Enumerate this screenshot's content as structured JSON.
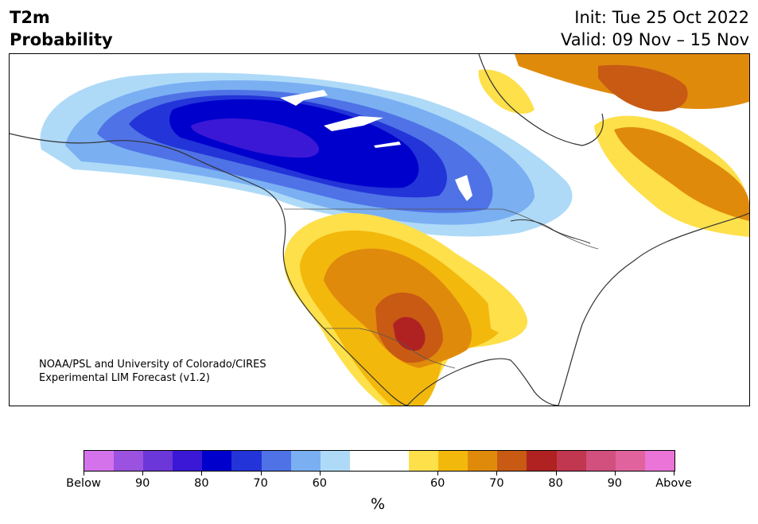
{
  "header": {
    "title_line1": "T2m",
    "title_line2": "Probability",
    "init": "Init: Tue 25 Oct 2022",
    "valid": "Valid: 09 Nov – 15 Nov"
  },
  "map": {
    "credit_line1": "NOAA/PSL and University of Colorado/CIRES",
    "credit_line2": "Experimental LIM Forecast (v1.2)"
  },
  "colorbar": {
    "colors": [
      "#d472ec",
      "#9b52e0",
      "#6c37d8",
      "#3b18d6",
      "#0000cc",
      "#2334d8",
      "#4f72e6",
      "#7aaff2",
      "#aedaf8",
      "#ffffff",
      "#ffffff",
      "#fde04a",
      "#f3b80c",
      "#e08a0c",
      "#c85a14",
      "#b02222",
      "#c23750",
      "#d2507e",
      "#e0639e",
      "#ea74d8"
    ],
    "tick_labels": [
      "Below",
      "90",
      "80",
      "70",
      "60",
      "60",
      "70",
      "80",
      "90",
      "Above"
    ],
    "unit_label": "%",
    "below_colors": {
      "p60": "#aedaf8",
      "p70": "#4f72e6",
      "p80": "#0000cc"
    },
    "above_colors": {
      "p60": "#fde04a",
      "p70": "#e08a0c",
      "p80": "#b02222"
    }
  }
}
